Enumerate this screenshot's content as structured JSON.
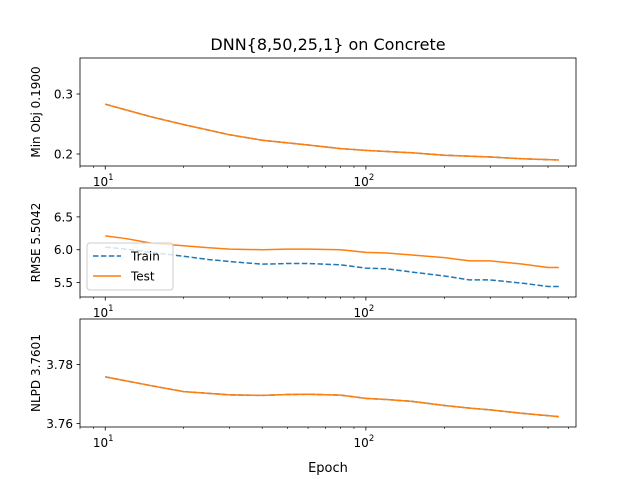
{
  "figure": {
    "title": "DNN{8,50,25,1} on Concrete",
    "xlabel": "Epoch"
  },
  "chart_data": [
    {
      "type": "line",
      "title": "DNN{8,50,25,1} on Concrete",
      "xlabel": "",
      "ylabel": "Min Obj 0.1900",
      "xscale": "log",
      "xlim": [
        8.0,
        640
      ],
      "ylim": [
        0.18,
        0.36
      ],
      "grid": false,
      "xticks": [
        {
          "value": 10,
          "base": "10",
          "exp": "1"
        },
        {
          "value": 100,
          "base": "10",
          "exp": "2"
        }
      ],
      "yticks": [
        {
          "value": 0.2,
          "label": "0.2"
        },
        {
          "value": 0.3,
          "label": "0.3"
        }
      ],
      "series": [
        {
          "color": "#1f77b4",
          "dashed": true,
          "x": [
            10,
            15,
            20,
            30,
            40,
            60,
            80,
            100,
            150,
            200,
            300,
            400,
            550
          ],
          "y": [
            0.283,
            0.262,
            0.249,
            0.232,
            0.223,
            0.215,
            0.209,
            0.206,
            0.202,
            0.198,
            0.195,
            0.192,
            0.19
          ]
        },
        {
          "color": "#ff7f0e",
          "dashed": false,
          "x": [
            10,
            15,
            20,
            30,
            40,
            60,
            80,
            100,
            150,
            200,
            300,
            400,
            550
          ],
          "y": [
            0.283,
            0.262,
            0.249,
            0.232,
            0.223,
            0.215,
            0.209,
            0.206,
            0.202,
            0.198,
            0.195,
            0.192,
            0.19
          ]
        }
      ]
    },
    {
      "type": "line",
      "xlabel": "",
      "ylabel": "RMSE 5.5042",
      "xscale": "log",
      "xlim": [
        8.0,
        640
      ],
      "ylim": [
        5.28,
        6.94
      ],
      "grid": false,
      "legend": "upper-left",
      "xticks": [
        {
          "value": 10,
          "base": "10",
          "exp": "1"
        },
        {
          "value": 100,
          "base": "10",
          "exp": "2"
        }
      ],
      "yticks": [
        {
          "value": 5.5,
          "label": "5.5"
        },
        {
          "value": 6.0,
          "label": "6.0"
        },
        {
          "value": 6.5,
          "label": "6.5"
        }
      ],
      "series": [
        {
          "name": "Train",
          "color": "#1f77b4",
          "dashed": true,
          "x": [
            10,
            12,
            15,
            20,
            25,
            30,
            40,
            50,
            60,
            80,
            100,
            120,
            150,
            200,
            250,
            300,
            400,
            500,
            550
          ],
          "y": [
            6.04,
            6.01,
            5.96,
            5.9,
            5.85,
            5.82,
            5.78,
            5.79,
            5.79,
            5.77,
            5.72,
            5.71,
            5.66,
            5.6,
            5.54,
            5.54,
            5.49,
            5.44,
            5.44
          ]
        },
        {
          "name": "Test",
          "color": "#ff7f0e",
          "dashed": false,
          "x": [
            10,
            12,
            15,
            20,
            25,
            30,
            40,
            50,
            60,
            80,
            100,
            120,
            150,
            200,
            250,
            300,
            400,
            500,
            550
          ],
          "y": [
            6.21,
            6.17,
            6.1,
            6.06,
            6.03,
            6.01,
            6.0,
            6.01,
            6.01,
            6.0,
            5.96,
            5.95,
            5.92,
            5.88,
            5.83,
            5.83,
            5.78,
            5.73,
            5.73
          ]
        }
      ]
    },
    {
      "type": "line",
      "xlabel": "Epoch",
      "ylabel": "NLPD 3.7601",
      "xscale": "log",
      "xlim": [
        8.0,
        640
      ],
      "ylim": [
        3.7588,
        3.7954
      ],
      "grid": false,
      "xticks": [
        {
          "value": 10,
          "base": "10",
          "exp": "1"
        },
        {
          "value": 100,
          "base": "10",
          "exp": "2"
        }
      ],
      "yticks": [
        {
          "value": 3.76,
          "label": "3.76"
        },
        {
          "value": 3.78,
          "label": "3.78"
        }
      ],
      "series": [
        {
          "color": "#1f77b4",
          "dashed": true,
          "x": [
            10,
            15,
            20,
            30,
            40,
            50,
            60,
            80,
            100,
            120,
            150,
            200,
            250,
            300,
            400,
            550
          ],
          "y": [
            3.7758,
            3.7728,
            3.7708,
            3.7697,
            3.7695,
            3.7698,
            3.7699,
            3.7696,
            3.7685,
            3.7681,
            3.7675,
            3.7661,
            3.7652,
            3.7646,
            3.7634,
            3.7623
          ]
        },
        {
          "color": "#ff7f0e",
          "dashed": false,
          "x": [
            10,
            15,
            20,
            30,
            40,
            50,
            60,
            80,
            100,
            120,
            150,
            200,
            250,
            300,
            400,
            550
          ],
          "y": [
            3.7758,
            3.7728,
            3.7708,
            3.7697,
            3.7695,
            3.7698,
            3.7699,
            3.7696,
            3.7685,
            3.7681,
            3.7675,
            3.7661,
            3.7652,
            3.7646,
            3.7634,
            3.7623
          ]
        }
      ]
    }
  ]
}
